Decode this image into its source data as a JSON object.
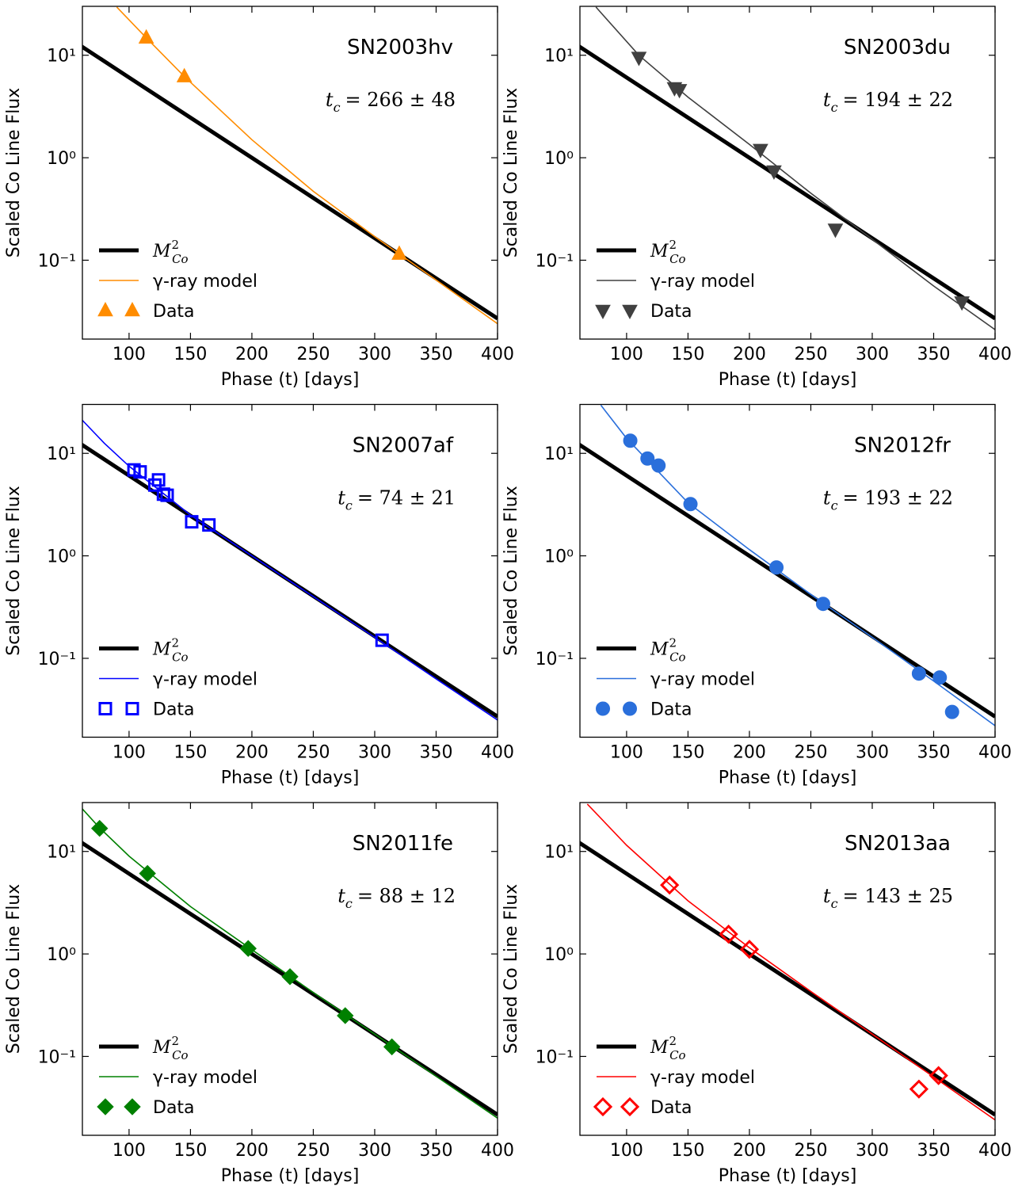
{
  "chart_data": [
    {
      "type": "line",
      "title": "SN2003hv",
      "title_color": "#ff8c00",
      "annotation": {
        "symbol": "t",
        "subscript": "c",
        "text": "= 266 ± 48"
      },
      "xlabel": "Phase (t) [days]",
      "ylabel": "Scaled Co Line Flux",
      "xlim": [
        62,
        400
      ],
      "xticks": [
        100,
        150,
        200,
        250,
        300,
        350,
        400
      ],
      "ylim": [
        0.017,
        30
      ],
      "log_y": true,
      "yticks": [
        {
          "value": 0.1,
          "label": "10⁻¹"
        },
        {
          "value": 1,
          "label": "10⁰"
        },
        {
          "value": 10,
          "label": "10¹"
        }
      ],
      "legend": "lower left",
      "series": [
        {
          "name": "M",
          "name_subscript": "Co",
          "name_superscript": "2",
          "color": "#000000",
          "width": 5,
          "x": [
            60,
            100,
            150,
            200,
            250,
            300,
            350,
            400
          ],
          "values": [
            12.5,
            6.07,
            2.46,
            1.0,
            0.405,
            0.164,
            0.0665,
            0.027
          ]
        },
        {
          "name": "γ-ray model",
          "color": "#ff8c00",
          "width": 1.6,
          "x": [
            90,
            114,
            145,
            200,
            250,
            300,
            320,
            350,
            400
          ],
          "values": [
            29.5,
            14.8,
            6.2,
            1.5,
            0.47,
            0.17,
            0.115,
            0.064,
            0.024
          ]
        },
        {
          "name": "Data",
          "color": "#ff8c00",
          "marker": "triangle-up",
          "filled": true,
          "x": [
            114,
            145,
            320
          ],
          "values": [
            14.8,
            6.2,
            0.115
          ]
        }
      ]
    },
    {
      "type": "line",
      "title": "SN2003du",
      "title_color": "#404040",
      "annotation": {
        "symbol": "t",
        "subscript": "c",
        "text": "= 194 ± 22"
      },
      "xlabel": "Phase (t) [days]",
      "ylabel": "Scaled Co Line Flux",
      "xlim": [
        62,
        400
      ],
      "xticks": [
        100,
        150,
        200,
        250,
        300,
        350,
        400
      ],
      "ylim": [
        0.017,
        30
      ],
      "log_y": true,
      "yticks": [
        {
          "value": 0.1,
          "label": "10⁻¹"
        },
        {
          "value": 1,
          "label": "10⁰"
        },
        {
          "value": 10,
          "label": "10¹"
        }
      ],
      "legend": "lower left",
      "series": [
        {
          "name": "M",
          "name_subscript": "Co",
          "name_superscript": "2",
          "color": "#000000",
          "width": 5,
          "x": [
            60,
            100,
            150,
            200,
            250,
            300,
            350,
            400
          ],
          "values": [
            12.5,
            6.07,
            2.46,
            1.0,
            0.405,
            0.164,
            0.0665,
            0.027
          ]
        },
        {
          "name": "γ-ray model",
          "color": "#404040",
          "width": 1.6,
          "x": [
            75,
            110,
            150,
            200,
            250,
            300,
            350,
            400
          ],
          "values": [
            29.5,
            10,
            3.9,
            1.35,
            0.45,
            0.16,
            0.056,
            0.021
          ]
        },
        {
          "name": "Data",
          "color": "#404040",
          "marker": "triangle-down",
          "filled": true,
          "x": [
            110,
            139,
            143,
            209,
            220,
            270,
            373
          ],
          "values": [
            9.5,
            4.8,
            4.6,
            1.2,
            0.74,
            0.2,
            0.039
          ]
        }
      ]
    },
    {
      "type": "line",
      "title": "SN2007af",
      "title_color": "#0000ff",
      "annotation": {
        "symbol": "t",
        "subscript": "c",
        "text": "= 74 ± 21"
      },
      "xlabel": "Phase (t) [days]",
      "ylabel": "Scaled Co Line Flux",
      "xlim": [
        62,
        400
      ],
      "xticks": [
        100,
        150,
        200,
        250,
        300,
        350,
        400
      ],
      "ylim": [
        0.017,
        30
      ],
      "log_y": true,
      "yticks": [
        {
          "value": 0.1,
          "label": "10⁻¹"
        },
        {
          "value": 1,
          "label": "10⁰"
        },
        {
          "value": 10,
          "label": "10¹"
        }
      ],
      "legend": "lower left",
      "series": [
        {
          "name": "M",
          "name_subscript": "Co",
          "name_superscript": "2",
          "color": "#000000",
          "width": 5,
          "x": [
            60,
            100,
            150,
            200,
            250,
            300,
            350,
            400
          ],
          "values": [
            12.5,
            6.07,
            2.46,
            1.0,
            0.405,
            0.164,
            0.0665,
            0.027
          ]
        },
        {
          "name": "γ-ray model",
          "color": "#0000ff",
          "width": 1.6,
          "x": [
            62,
            80,
            100,
            150,
            200,
            250,
            300,
            350,
            400
          ],
          "values": [
            21,
            12.5,
            7.5,
            2.5,
            1.0,
            0.4,
            0.16,
            0.063,
            0.025
          ]
        },
        {
          "name": "Data",
          "color": "#0000ff",
          "marker": "square",
          "filled": false,
          "x": [
            104,
            109,
            121,
            124,
            128,
            131,
            151,
            165,
            306
          ],
          "values": [
            6.9,
            6.6,
            4.9,
            5.5,
            4.0,
            3.9,
            2.15,
            2.0,
            0.15
          ]
        }
      ]
    },
    {
      "type": "line",
      "title": "SN2012fr",
      "title_color": "#2a6fdb",
      "annotation": {
        "symbol": "t",
        "subscript": "c",
        "text": "= 193 ± 22"
      },
      "xlabel": "Phase (t) [days]",
      "ylabel": "Scaled Co Line Flux",
      "xlim": [
        62,
        400
      ],
      "xticks": [
        100,
        150,
        200,
        250,
        300,
        350,
        400
      ],
      "ylim": [
        0.017,
        30
      ],
      "log_y": true,
      "yticks": [
        {
          "value": 0.1,
          "label": "10⁻¹"
        },
        {
          "value": 1,
          "label": "10⁰"
        },
        {
          "value": 10,
          "label": "10¹"
        }
      ],
      "legend": "lower left",
      "series": [
        {
          "name": "M",
          "name_subscript": "Co",
          "name_superscript": "2",
          "color": "#000000",
          "width": 5,
          "x": [
            60,
            100,
            150,
            200,
            250,
            300,
            350,
            400
          ],
          "values": [
            12.5,
            6.07,
            2.46,
            1.0,
            0.405,
            0.164,
            0.0665,
            0.027
          ]
        },
        {
          "name": "γ-ray model",
          "color": "#2a6fdb",
          "width": 1.6,
          "x": [
            79,
            100,
            150,
            200,
            250,
            300,
            350,
            400
          ],
          "values": [
            29.5,
            14,
            3.3,
            1.15,
            0.42,
            0.16,
            0.06,
            0.022
          ]
        },
        {
          "name": "Data",
          "color": "#2a6fdb",
          "marker": "circle",
          "filled": true,
          "x": [
            103,
            117,
            126,
            152,
            222,
            260,
            338,
            355,
            365
          ],
          "values": [
            13.3,
            8.9,
            7.6,
            3.2,
            0.77,
            0.34,
            0.071,
            0.065,
            0.03
          ]
        }
      ]
    },
    {
      "type": "line",
      "title": "SN2011fe",
      "title_color": "#008000",
      "annotation": {
        "symbol": "t",
        "subscript": "c",
        "text": "= 88 ± 12"
      },
      "xlabel": "Phase (t) [days]",
      "ylabel": "Scaled Co Line Flux",
      "xlim": [
        62,
        400
      ],
      "xticks": [
        100,
        150,
        200,
        250,
        300,
        350,
        400
      ],
      "ylim": [
        0.017,
        30
      ],
      "log_y": true,
      "yticks": [
        {
          "value": 0.1,
          "label": "10⁻¹"
        },
        {
          "value": 1,
          "label": "10⁰"
        },
        {
          "value": 10,
          "label": "10¹"
        }
      ],
      "legend": "lower left",
      "series": [
        {
          "name": "M",
          "name_subscript": "Co",
          "name_superscript": "2",
          "color": "#000000",
          "width": 5,
          "x": [
            60,
            100,
            150,
            200,
            250,
            300,
            350,
            400
          ],
          "values": [
            12.5,
            6.07,
            2.46,
            1.0,
            0.405,
            0.164,
            0.0665,
            0.027
          ]
        },
        {
          "name": "γ-ray model",
          "color": "#008000",
          "width": 1.6,
          "x": [
            62,
            76,
            100,
            150,
            200,
            250,
            300,
            350,
            400
          ],
          "values": [
            26,
            17,
            9.0,
            2.9,
            1.1,
            0.42,
            0.165,
            0.064,
            0.025
          ]
        },
        {
          "name": "Data",
          "color": "#008000",
          "marker": "diamond",
          "filled": true,
          "x": [
            76,
            115,
            197,
            231,
            276,
            314
          ],
          "values": [
            16.8,
            6.1,
            1.13,
            0.6,
            0.25,
            0.124
          ]
        }
      ]
    },
    {
      "type": "line",
      "title": "SN2013aa",
      "title_color": "#ff0000",
      "annotation": {
        "symbol": "t",
        "subscript": "c",
        "text": "= 143 ± 25"
      },
      "xlabel": "Phase (t) [days]",
      "ylabel": "Scaled Co Line Flux",
      "xlim": [
        62,
        400
      ],
      "xticks": [
        100,
        150,
        200,
        250,
        300,
        350,
        400
      ],
      "ylim": [
        0.017,
        30
      ],
      "log_y": true,
      "yticks": [
        {
          "value": 0.1,
          "label": "10⁻¹"
        },
        {
          "value": 1,
          "label": "10⁰"
        },
        {
          "value": 10,
          "label": "10¹"
        }
      ],
      "legend": "lower left",
      "series": [
        {
          "name": "M",
          "name_subscript": "Co",
          "name_superscript": "2",
          "color": "#000000",
          "width": 5,
          "x": [
            60,
            100,
            150,
            200,
            250,
            300,
            350,
            400
          ],
          "values": [
            12.5,
            6.07,
            2.46,
            1.0,
            0.405,
            0.164,
            0.0665,
            0.027
          ]
        },
        {
          "name": "γ-ray model",
          "color": "#ff0000",
          "width": 1.6,
          "x": [
            68,
            100,
            150,
            200,
            250,
            300,
            350,
            400
          ],
          "values": [
            29,
            11.5,
            3.3,
            1.15,
            0.43,
            0.165,
            0.063,
            0.024
          ]
        },
        {
          "name": "Data",
          "color": "#ff0000",
          "marker": "diamond",
          "filled": false,
          "x": [
            135,
            183,
            200,
            338,
            354
          ],
          "values": [
            4.7,
            1.56,
            1.11,
            0.048,
            0.065
          ]
        }
      ]
    }
  ]
}
